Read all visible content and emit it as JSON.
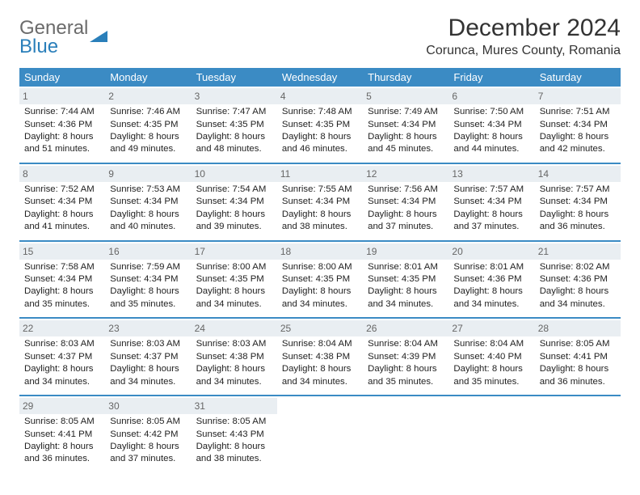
{
  "logo": {
    "line1": "General",
    "line2": "Blue"
  },
  "title": "December 2024",
  "location": "Corunca, Mures County, Romania",
  "colors": {
    "header_bg": "#3b8bc4",
    "header_text": "#ffffff",
    "daynum_bg": "#e9eef2",
    "daynum_text": "#666666",
    "separator": "#3b8bc4",
    "body_text": "#222222",
    "logo_gray": "#6b6b6b",
    "logo_blue": "#2a7fba"
  },
  "typography": {
    "title_fontsize": 30,
    "subtitle_fontsize": 16,
    "dayhead_fontsize": 13,
    "cell_fontsize": 11.4
  },
  "day_labels": [
    "Sunday",
    "Monday",
    "Tuesday",
    "Wednesday",
    "Thursday",
    "Friday",
    "Saturday"
  ],
  "labels": {
    "sunrise": "Sunrise:",
    "sunset": "Sunset:",
    "daylight": "Daylight:"
  },
  "weeks": [
    [
      {
        "day": 1,
        "sunrise": "7:44 AM",
        "sunset": "4:36 PM",
        "daylight": "8 hours and 51 minutes."
      },
      {
        "day": 2,
        "sunrise": "7:46 AM",
        "sunset": "4:35 PM",
        "daylight": "8 hours and 49 minutes."
      },
      {
        "day": 3,
        "sunrise": "7:47 AM",
        "sunset": "4:35 PM",
        "daylight": "8 hours and 48 minutes."
      },
      {
        "day": 4,
        "sunrise": "7:48 AM",
        "sunset": "4:35 PM",
        "daylight": "8 hours and 46 minutes."
      },
      {
        "day": 5,
        "sunrise": "7:49 AM",
        "sunset": "4:34 PM",
        "daylight": "8 hours and 45 minutes."
      },
      {
        "day": 6,
        "sunrise": "7:50 AM",
        "sunset": "4:34 PM",
        "daylight": "8 hours and 44 minutes."
      },
      {
        "day": 7,
        "sunrise": "7:51 AM",
        "sunset": "4:34 PM",
        "daylight": "8 hours and 42 minutes."
      }
    ],
    [
      {
        "day": 8,
        "sunrise": "7:52 AM",
        "sunset": "4:34 PM",
        "daylight": "8 hours and 41 minutes."
      },
      {
        "day": 9,
        "sunrise": "7:53 AM",
        "sunset": "4:34 PM",
        "daylight": "8 hours and 40 minutes."
      },
      {
        "day": 10,
        "sunrise": "7:54 AM",
        "sunset": "4:34 PM",
        "daylight": "8 hours and 39 minutes."
      },
      {
        "day": 11,
        "sunrise": "7:55 AM",
        "sunset": "4:34 PM",
        "daylight": "8 hours and 38 minutes."
      },
      {
        "day": 12,
        "sunrise": "7:56 AM",
        "sunset": "4:34 PM",
        "daylight": "8 hours and 37 minutes."
      },
      {
        "day": 13,
        "sunrise": "7:57 AM",
        "sunset": "4:34 PM",
        "daylight": "8 hours and 37 minutes."
      },
      {
        "day": 14,
        "sunrise": "7:57 AM",
        "sunset": "4:34 PM",
        "daylight": "8 hours and 36 minutes."
      }
    ],
    [
      {
        "day": 15,
        "sunrise": "7:58 AM",
        "sunset": "4:34 PM",
        "daylight": "8 hours and 35 minutes."
      },
      {
        "day": 16,
        "sunrise": "7:59 AM",
        "sunset": "4:34 PM",
        "daylight": "8 hours and 35 minutes."
      },
      {
        "day": 17,
        "sunrise": "8:00 AM",
        "sunset": "4:35 PM",
        "daylight": "8 hours and 34 minutes."
      },
      {
        "day": 18,
        "sunrise": "8:00 AM",
        "sunset": "4:35 PM",
        "daylight": "8 hours and 34 minutes."
      },
      {
        "day": 19,
        "sunrise": "8:01 AM",
        "sunset": "4:35 PM",
        "daylight": "8 hours and 34 minutes."
      },
      {
        "day": 20,
        "sunrise": "8:01 AM",
        "sunset": "4:36 PM",
        "daylight": "8 hours and 34 minutes."
      },
      {
        "day": 21,
        "sunrise": "8:02 AM",
        "sunset": "4:36 PM",
        "daylight": "8 hours and 34 minutes."
      }
    ],
    [
      {
        "day": 22,
        "sunrise": "8:03 AM",
        "sunset": "4:37 PM",
        "daylight": "8 hours and 34 minutes."
      },
      {
        "day": 23,
        "sunrise": "8:03 AM",
        "sunset": "4:37 PM",
        "daylight": "8 hours and 34 minutes."
      },
      {
        "day": 24,
        "sunrise": "8:03 AM",
        "sunset": "4:38 PM",
        "daylight": "8 hours and 34 minutes."
      },
      {
        "day": 25,
        "sunrise": "8:04 AM",
        "sunset": "4:38 PM",
        "daylight": "8 hours and 34 minutes."
      },
      {
        "day": 26,
        "sunrise": "8:04 AM",
        "sunset": "4:39 PM",
        "daylight": "8 hours and 35 minutes."
      },
      {
        "day": 27,
        "sunrise": "8:04 AM",
        "sunset": "4:40 PM",
        "daylight": "8 hours and 35 minutes."
      },
      {
        "day": 28,
        "sunrise": "8:05 AM",
        "sunset": "4:41 PM",
        "daylight": "8 hours and 36 minutes."
      }
    ],
    [
      {
        "day": 29,
        "sunrise": "8:05 AM",
        "sunset": "4:41 PM",
        "daylight": "8 hours and 36 minutes."
      },
      {
        "day": 30,
        "sunrise": "8:05 AM",
        "sunset": "4:42 PM",
        "daylight": "8 hours and 37 minutes."
      },
      {
        "day": 31,
        "sunrise": "8:05 AM",
        "sunset": "4:43 PM",
        "daylight": "8 hours and 38 minutes."
      },
      null,
      null,
      null,
      null
    ]
  ]
}
